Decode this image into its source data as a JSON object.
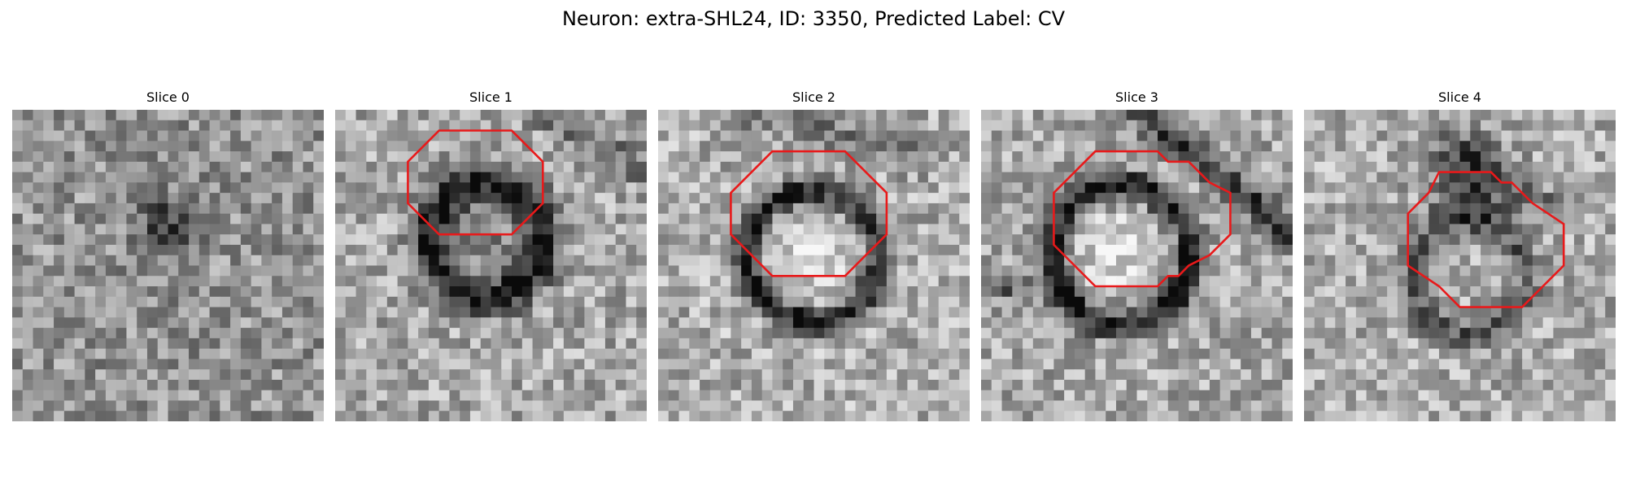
{
  "figure": {
    "title": "Neuron: extra-SHL24, ID: 3350, Predicted Label: CV"
  },
  "colors": {
    "contour": "#e8191a",
    "background": "#ffffff"
  },
  "panels": [
    {
      "title": "Slice 0",
      "has_contour": false,
      "image_description": "noisy grayscale texture with a faint dark blob near center"
    },
    {
      "title": "Slice 1",
      "has_contour": true,
      "image_description": "dark thick ring with grainy interior"
    },
    {
      "title": "Slice 2",
      "has_contour": true,
      "image_description": "dark ring around a bright center"
    },
    {
      "title": "Slice 3",
      "has_contour": true,
      "image_description": "dark ring around bright center with dark diagonal band at upper right"
    },
    {
      "title": "Slice 4",
      "has_contour": true,
      "image_description": "faint dark ring with dark patch above"
    }
  ]
}
